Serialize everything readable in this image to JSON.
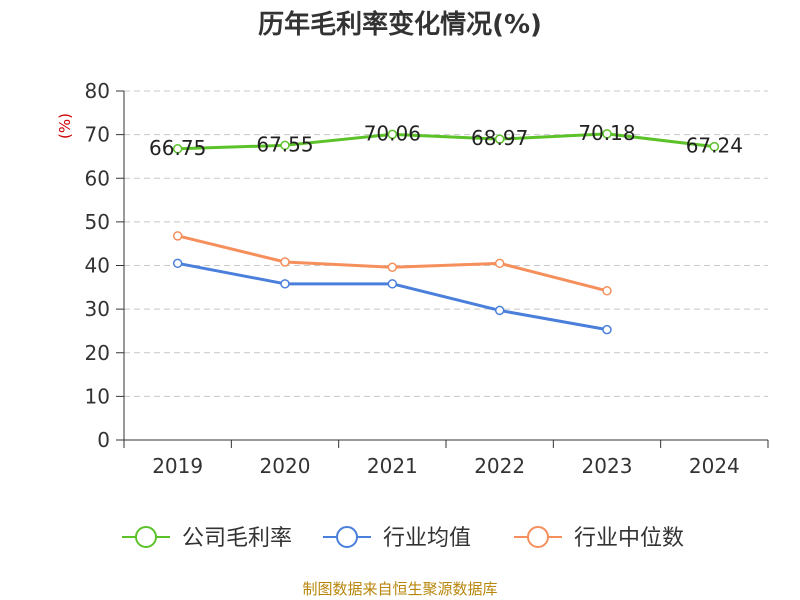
{
  "chart_data": {
    "type": "line",
    "title": "历年毛利率变化情况(%)",
    "ylabel": "(%)",
    "ylim": [
      0,
      80
    ],
    "yticks": [
      0,
      10,
      20,
      30,
      40,
      50,
      60,
      70,
      80
    ],
    "categories": [
      "2019",
      "2020",
      "2021",
      "2022",
      "2023",
      "2024"
    ],
    "grid": true,
    "legend_position": "bottom",
    "series": [
      {
        "name": "公司毛利率",
        "color": "#5cc22a",
        "values": [
          66.75,
          67.55,
          70.06,
          68.97,
          70.18,
          67.24
        ],
        "labels": [
          "66.75",
          "67.55",
          "70.06",
          "68.97",
          "70.18",
          "67.24"
        ]
      },
      {
        "name": "行业均值",
        "color": "#4a7fdb",
        "values": [
          40.5,
          35.8,
          35.8,
          29.7,
          25.3,
          null
        ]
      },
      {
        "name": "行业中位数",
        "color": "#f58f5c",
        "values": [
          46.8,
          40.8,
          39.6,
          40.5,
          34.2,
          null
        ]
      }
    ],
    "source": "制图数据来自恒生聚源数据库"
  }
}
